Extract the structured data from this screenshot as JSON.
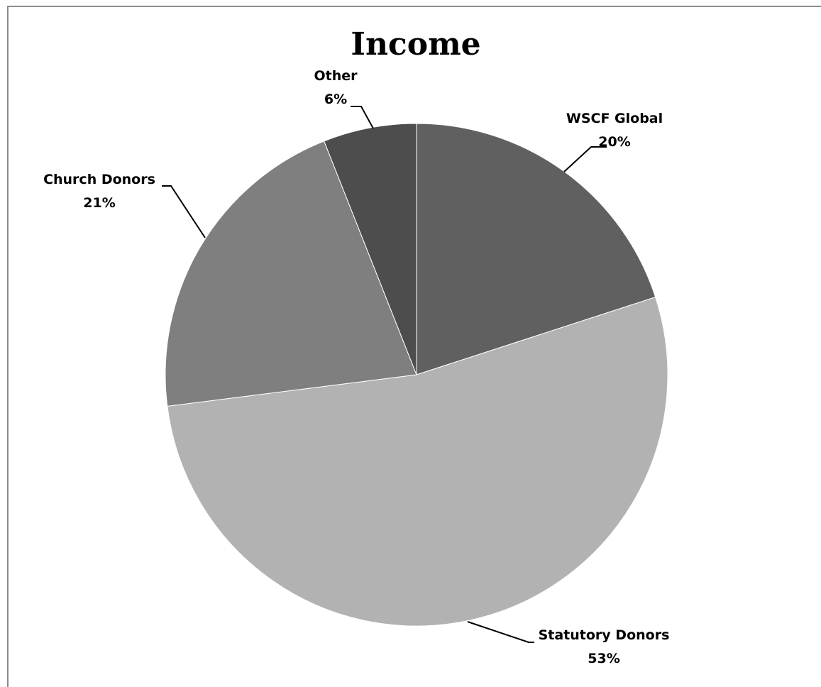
{
  "chart_data": {
    "type": "pie",
    "title": "Income",
    "slices": [
      {
        "label": "WSCF Global",
        "percent_label": "20%",
        "value": 20,
        "color": "#606060"
      },
      {
        "label": "Statutory Donors",
        "percent_label": "53%",
        "value": 53,
        "color": "#b2b2b2"
      },
      {
        "label": "Church Donors",
        "percent_label": "21%",
        "value": 21,
        "color": "#7f7f7f"
      },
      {
        "label": "Other",
        "percent_label": "6%",
        "value": 6,
        "color": "#4d4d4d"
      }
    ],
    "start_angle": "12 o'clock",
    "direction": "clockwise",
    "legend": "none"
  }
}
